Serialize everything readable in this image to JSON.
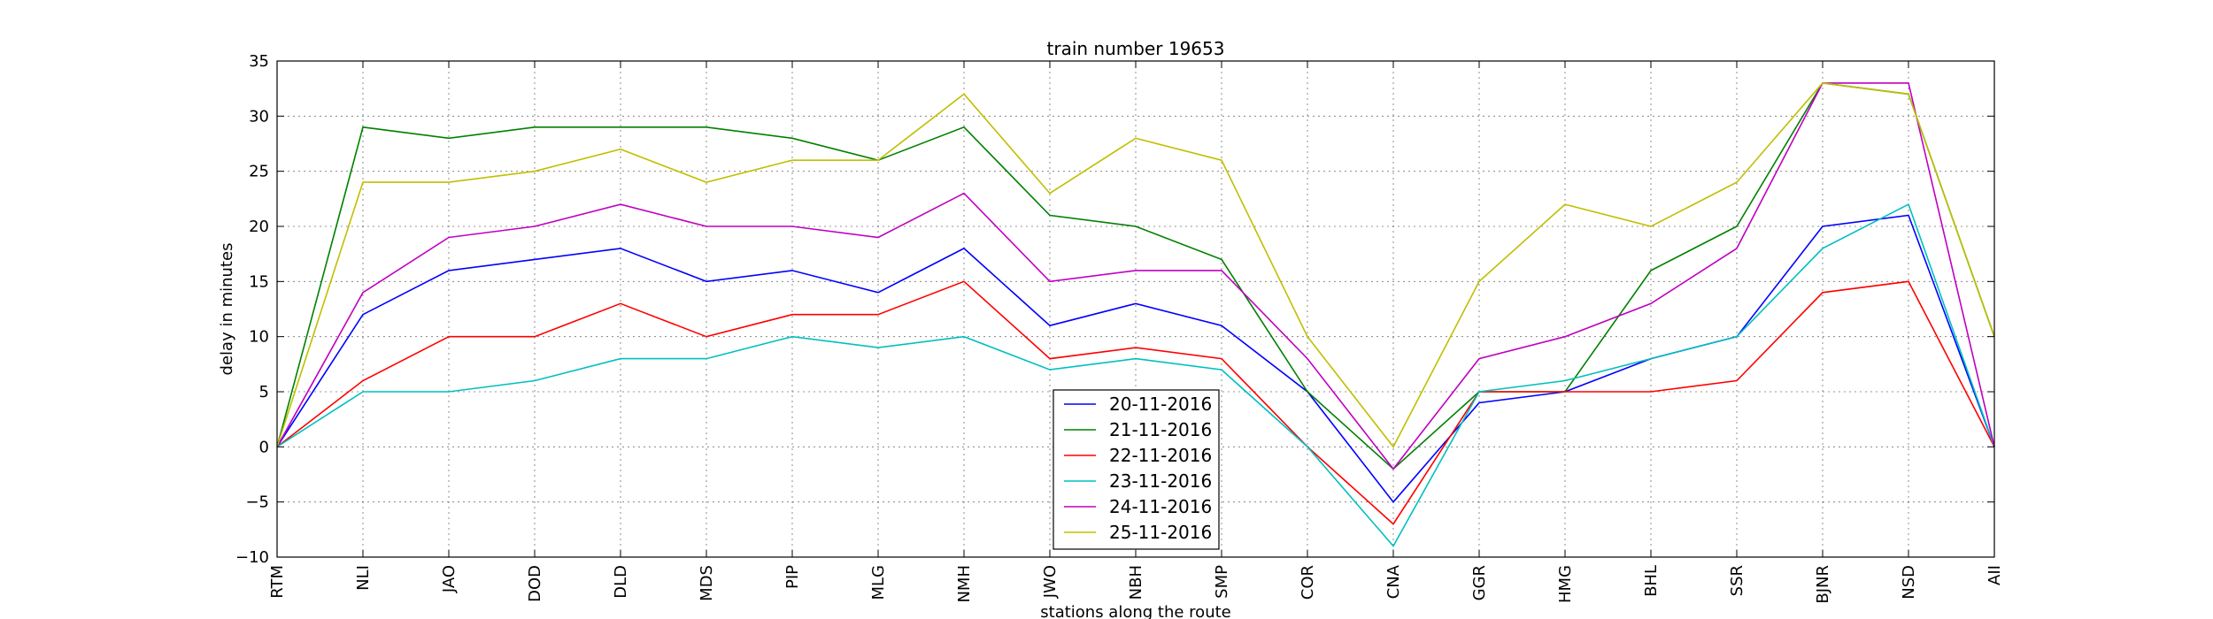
{
  "chart_data": {
    "type": "line",
    "title": "train number 19653",
    "xlabel": "stations along the route",
    "ylabel": "delay in minutes",
    "categories": [
      "RTM",
      "NLI",
      "JAO",
      "DOD",
      "DLD",
      "MDS",
      "PIP",
      "MLG",
      "NMH",
      "JWO",
      "NBH",
      "SMP",
      "COR",
      "CNA",
      "GGR",
      "HMG",
      "BHL",
      "SSR",
      "BJNR",
      "NSD",
      "AII"
    ],
    "yticks": [
      -10,
      -5,
      0,
      5,
      10,
      15,
      20,
      25,
      30,
      35
    ],
    "ylim": [
      -10,
      35
    ],
    "grid": true,
    "legend_position": "bottom-center",
    "series": [
      {
        "name": "20-11-2016",
        "color": "#0000ff",
        "values": [
          0,
          12,
          16,
          17,
          18,
          15,
          16,
          14,
          18,
          11,
          13,
          11,
          5,
          -5,
          4,
          5,
          8,
          10,
          20,
          21,
          0
        ]
      },
      {
        "name": "21-11-2016",
        "color": "#008000",
        "values": [
          0,
          29,
          28,
          29,
          29,
          29,
          28,
          26,
          29,
          21,
          20,
          17,
          5,
          -2,
          5,
          5,
          16,
          20,
          33,
          32,
          10
        ]
      },
      {
        "name": "22-11-2016",
        "color": "#ff0000",
        "values": [
          0,
          6,
          10,
          10,
          13,
          10,
          12,
          12,
          15,
          8,
          9,
          8,
          0,
          -7,
          5,
          5,
          5,
          6,
          14,
          15,
          0
        ]
      },
      {
        "name": "23-11-2016",
        "color": "#00bfbf",
        "values": [
          0,
          5,
          5,
          6,
          8,
          8,
          10,
          9,
          10,
          7,
          8,
          7,
          0,
          -9,
          5,
          6,
          8,
          10,
          18,
          22,
          0
        ]
      },
      {
        "name": "24-11-2016",
        "color": "#bf00bf",
        "values": [
          0,
          14,
          19,
          20,
          22,
          20,
          20,
          19,
          23,
          15,
          16,
          16,
          8,
          -2,
          8,
          10,
          13,
          18,
          33,
          33,
          0
        ]
      },
      {
        "name": "25-11-2016",
        "color": "#bfbf00",
        "values": [
          0,
          24,
          24,
          25,
          27,
          24,
          26,
          26,
          32,
          23,
          28,
          26,
          10,
          0,
          15,
          22,
          20,
          24,
          33,
          32,
          10
        ]
      }
    ]
  }
}
